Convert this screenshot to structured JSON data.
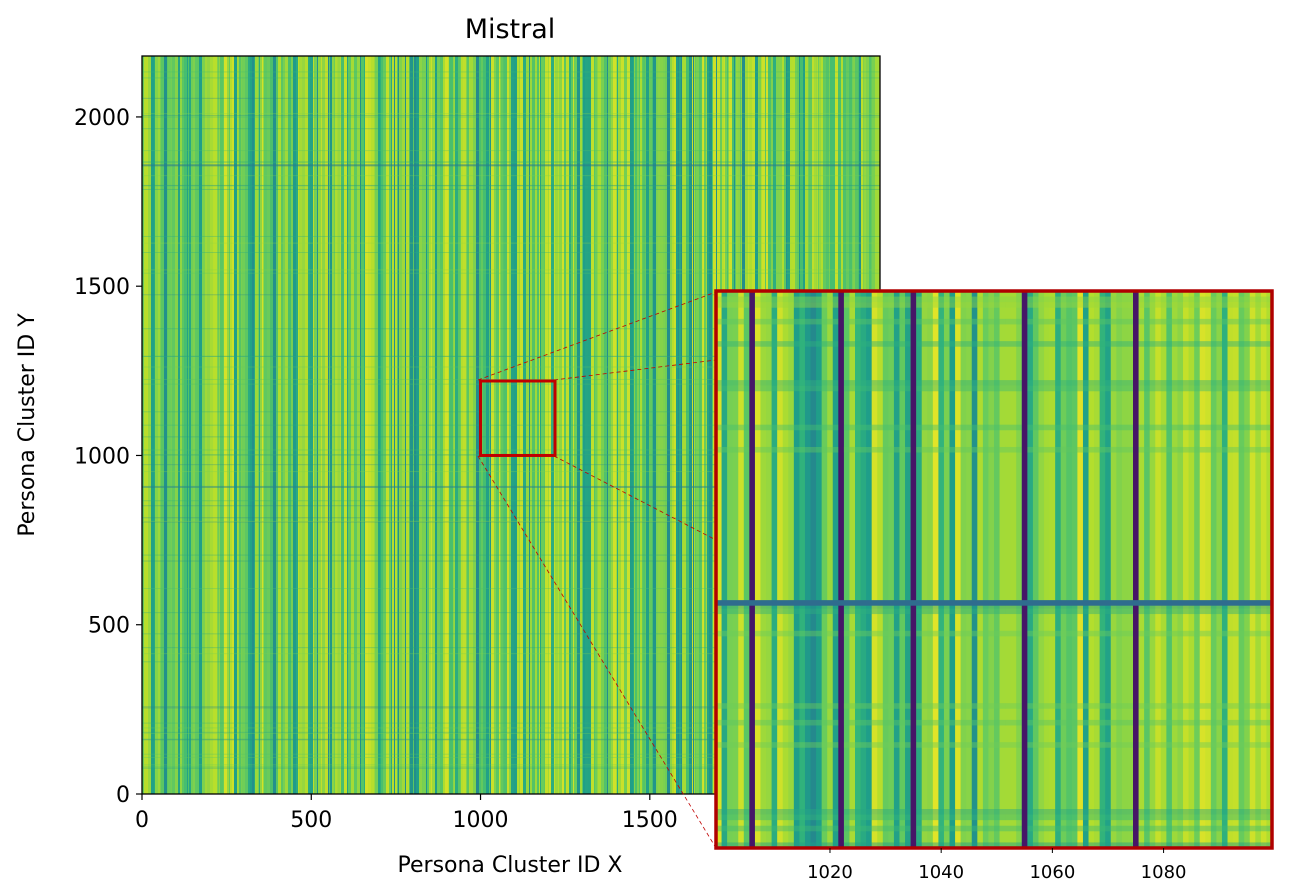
{
  "chart_data": {
    "type": "heatmap",
    "title": "Mistral",
    "xlabel": "Persona Cluster ID X",
    "ylabel": "Persona Cluster ID Y",
    "xlim": [
      0,
      2180
    ],
    "ylim": [
      0,
      2180
    ],
    "x_ticks": [
      "0",
      "500",
      "1000",
      "1500"
    ],
    "y_ticks": [
      "0",
      "500",
      "1000",
      "1500",
      "2000"
    ],
    "colormap": "viridis",
    "highlight_box": {
      "x": [
        1000,
        1220
      ],
      "y": [
        1000,
        1220
      ],
      "color": "#c00000"
    },
    "inset": {
      "x_range": [
        1000,
        1100
      ],
      "x_ticks": [
        "1020",
        "1040",
        "1060",
        "1080"
      ],
      "dark_columns": [
        1006,
        1022,
        1035,
        1055,
        1075
      ],
      "dark_row_fraction": 0.56,
      "border_color": "#c00000"
    }
  }
}
